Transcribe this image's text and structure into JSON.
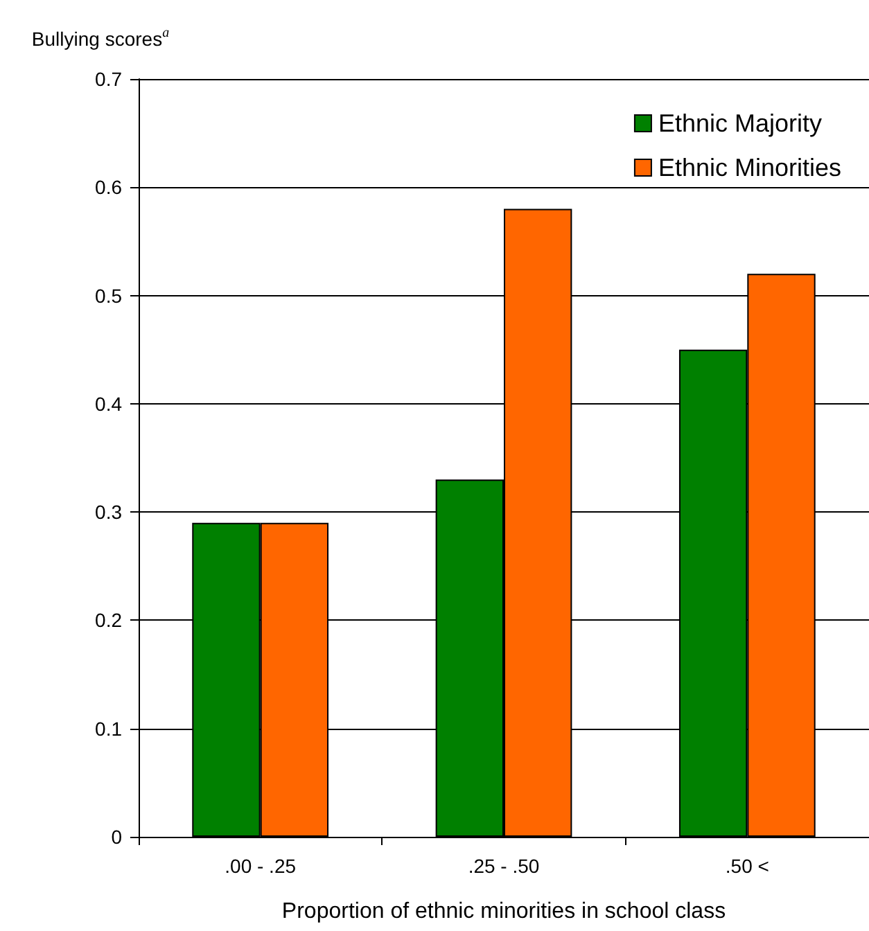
{
  "chart_data": {
    "type": "bar",
    "ylabel": "Bullying scores$^{a}$",
    "xlabel": "Proportion of ethnic minorities in school class",
    "categories": [
      ".00 - .25",
      ".25 - .50",
      ".50 <"
    ],
    "series": [
      {
        "name": "Ethnic Majority",
        "color": "#008000",
        "values": [
          0.29,
          0.33,
          0.45
        ]
      },
      {
        "name": "Ethnic Minorities",
        "color": "#ff6600",
        "values": [
          0.29,
          0.58,
          0.52
        ]
      }
    ],
    "ylim": [
      0,
      0.7
    ],
    "yticks": [
      0,
      0.1,
      0.2,
      0.3,
      0.4,
      0.5,
      0.6,
      0.7
    ],
    "grid": "y",
    "legend": "top right"
  }
}
